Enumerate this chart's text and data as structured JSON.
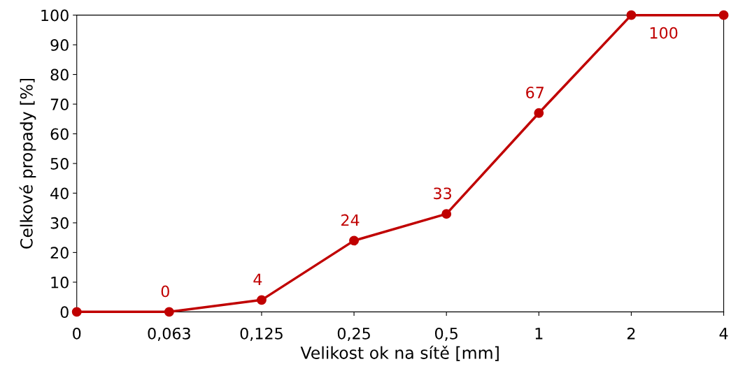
{
  "chart_data": {
    "type": "line",
    "xlabel": "Velikost ok na sítě [mm]",
    "ylabel": "Celkové propady [%]",
    "categories": [
      "0",
      "0,063",
      "0,125",
      "0,25",
      "0,5",
      "1",
      "2",
      "4"
    ],
    "series": [
      {
        "color": "#c00000",
        "values": [
          0,
          0,
          4,
          24,
          33,
          67,
          100,
          100
        ],
        "value_labels": [
          null,
          "0",
          "4",
          "24",
          "33",
          "67",
          "100",
          null
        ]
      }
    ],
    "ylim": [
      0,
      100
    ],
    "yticks": [
      0,
      10,
      20,
      30,
      40,
      50,
      60,
      70,
      80,
      90,
      100
    ],
    "grid": false,
    "marker": "circle",
    "line_style": "solid"
  }
}
